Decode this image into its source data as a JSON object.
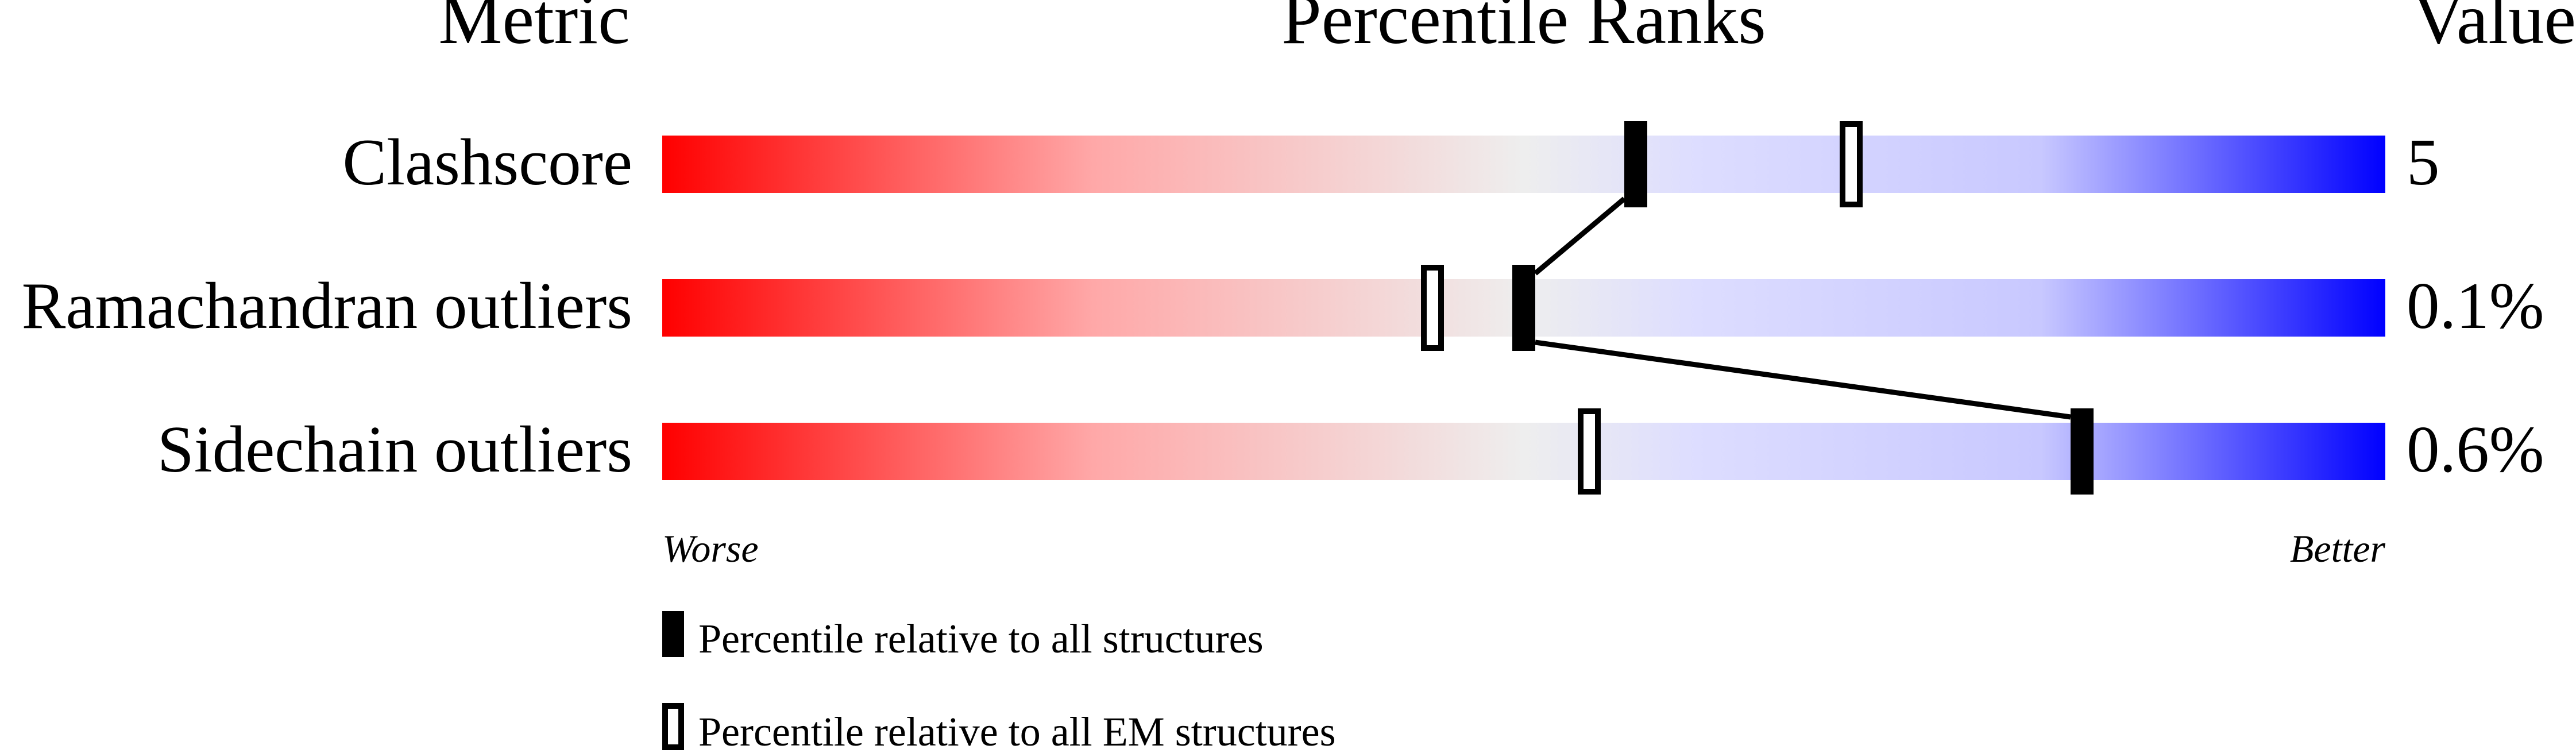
{
  "chart_data": {
    "type": "percentile-slider",
    "headers": {
      "metric": "Metric",
      "ranks": "Percentile Ranks",
      "value": "Value"
    },
    "axis": {
      "min_label": "Worse",
      "max_label": "Better",
      "range": [
        0,
        100
      ]
    },
    "gradient_colors": [
      "#ff0000",
      "#eeeeee",
      "#ddddff",
      "#0000ff"
    ],
    "rows": [
      {
        "metric": "Clashscore",
        "value": "5",
        "percentile_all": 56.5,
        "percentile_em": 69
      },
      {
        "metric": "Ramachandran outliers",
        "value": "0.1%",
        "percentile_all": 50,
        "percentile_em": 44.7
      },
      {
        "metric": "Sidechain outliers",
        "value": "0.6%",
        "percentile_all": 82.4,
        "percentile_em": 53.8
      }
    ],
    "legend": [
      {
        "marker": "filled",
        "label": "Percentile relative to all structures"
      },
      {
        "marker": "open",
        "label": "Percentile relative to all EM structures"
      }
    ]
  }
}
